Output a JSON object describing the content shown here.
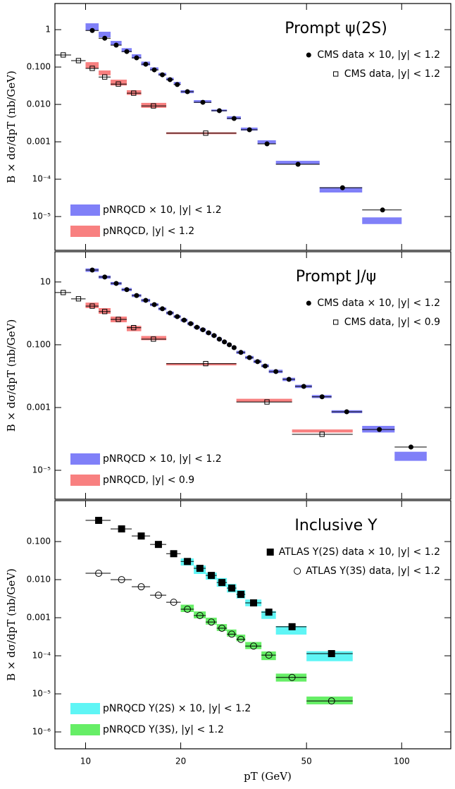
{
  "chart_data": {
    "xlim": [
      8,
      143
    ],
    "xticks": [
      10,
      20,
      50,
      100
    ],
    "xlabel": "pT   (GeV)",
    "log": true,
    "panels": [
      {
        "type": "scatter",
        "title": "Prompt ψ(2S)",
        "ylabel": "B × dσ/dpT   (nb/GeV)",
        "ylim": [
          1.25e-06,
          5
        ],
        "yticks": [
          1,
          {
            "value": 0.1,
            "label": "0.100"
          },
          {
            "value": 0.01,
            "label": "0.010"
          },
          0.001,
          {
            "value": 0.0001,
            "label": "10⁻⁴"
          },
          {
            "value": 1e-05,
            "label": "10⁻⁵"
          }
        ],
        "legend_points": "upper right",
        "legend_bands": "lower left",
        "series": [
          {
            "name": "pNRQCD × 10, |y| < 1.2",
            "kind": "band",
            "color": "#8080f8",
            "bin_low": [
              10,
              11,
              12,
              13,
              14,
              15,
              16,
              17,
              18,
              19,
              20,
              22,
              25,
              28,
              31,
              35,
              40,
              55,
              75
            ],
            "bin_high": [
              11,
              12,
              13,
              14,
              15,
              16,
              17,
              18,
              19,
              20,
              22,
              25,
              28,
              31,
              35,
              40,
              55,
              75,
              100
            ],
            "low": [
              0.96,
              0.62,
              0.385,
              0.25,
              0.17,
              0.11,
              0.081,
              0.059,
              0.044,
              0.034,
              0.02,
              0.011,
              0.0065,
              0.004,
              0.002,
              0.00088,
              0.00025,
              4.4e-05,
              6.3e-06
            ],
            "high": [
              1.48,
              0.88,
              0.5,
              0.32,
              0.22,
              0.14,
              0.098,
              0.07,
              0.052,
              0.04,
              0.024,
              0.013,
              0.0073,
              0.0048,
              0.0024,
              0.0011,
              0.00031,
              6.1e-05,
              9.5e-06
            ]
          },
          {
            "name": "pNRQCD, |y| < 1.2",
            "kind": "band",
            "color": "#f88080",
            "bin_low": [
              10,
              11,
              12,
              13.5,
              15,
              18
            ],
            "bin_high": [
              11,
              12,
              13.5,
              15,
              18,
              30
            ],
            "low": [
              0.092,
              0.06,
              0.032,
              0.018,
              0.0081,
              0.0016
            ],
            "high": [
              0.135,
              0.081,
              0.046,
              0.024,
              0.011,
              0.0018
            ]
          },
          {
            "name": "CMS data × 10, |y| < 1.2",
            "kind": "points",
            "marker": "filled-circle",
            "color": "#000000",
            "x": [
              10.5,
              11.5,
              12.5,
              13.5,
              14.5,
              15.5,
              16.5,
              17.5,
              18.5,
              19.5,
              21,
              23.5,
              26.5,
              29.5,
              33,
              37.5,
              47,
              65,
              87
            ],
            "bin_low": [
              10,
              11,
              12,
              13,
              14,
              15,
              16,
              17,
              18,
              19,
              20,
              22,
              25,
              28,
              31,
              35,
              40,
              55,
              75
            ],
            "bin_high": [
              11,
              12,
              13,
              14,
              15,
              16,
              17,
              18,
              19,
              20,
              22,
              25,
              28,
              31,
              35,
              40,
              55,
              75,
              100
            ],
            "values": [
              0.95,
              0.59,
              0.385,
              0.26,
              0.176,
              0.119,
              0.084,
              0.062,
              0.046,
              0.034,
              0.0219,
              0.0114,
              0.0068,
              0.0042,
              0.0021,
              0.00088,
              0.00025,
              5.9e-05,
              1.5e-05
            ]
          },
          {
            "name": "CMS data, |y| < 1.2",
            "kind": "points",
            "marker": "open-square",
            "color": "#000000",
            "x": [
              8.5,
              9.5,
              10.5,
              11.5,
              12.7,
              14.2,
              16.4,
              24
            ],
            "bin_low": [
              8,
              9,
              10,
              11,
              12,
              13.5,
              15,
              18
            ],
            "bin_high": [
              9,
              10,
              11,
              12,
              13.5,
              15,
              18,
              30
            ],
            "values": [
              0.21,
              0.148,
              0.092,
              0.054,
              0.035,
              0.02,
              0.0091,
              0.0017
            ]
          }
        ]
      },
      {
        "type": "scatter",
        "title": "Prompt J/ψ",
        "ylabel": "B × dσ/dpT   (nb/GeV)",
        "ylim": [
          1.2e-06,
          92
        ],
        "yticks": [
          10,
          {
            "value": 0.1,
            "label": "0.100"
          },
          0.001,
          {
            "value": 1e-05,
            "label": "10⁻⁵"
          }
        ],
        "legend_points": "upper right",
        "legend_bands": "lower left",
        "series": [
          {
            "name": "pNRQCD × 10, |y| < 1.2",
            "kind": "band",
            "color": "#8080f8",
            "bin_low": [
              10,
              11,
              12,
              13,
              14,
              15,
              16,
              17,
              18,
              19,
              20,
              21,
              22,
              23,
              24,
              25,
              26,
              27,
              28,
              29,
              30,
              32,
              34,
              36,
              38,
              42,
              46,
              52,
              60,
              75,
              95
            ],
            "bin_high": [
              11,
              12,
              13,
              14,
              15,
              16,
              17,
              18,
              19,
              20,
              21,
              22,
              23,
              24,
              25,
              26,
              27,
              28,
              29,
              30,
              32,
              34,
              36,
              38,
              42,
              46,
              52,
              60,
              75,
              95,
              120
            ],
            "low": [
              21,
              12.8,
              8.0,
              5.1,
              3.3,
              2.3,
              1.7,
              1.25,
              0.92,
              0.71,
              0.54,
              0.42,
              0.32,
              0.27,
              0.21,
              0.175,
              0.135,
              0.11,
              0.089,
              0.072,
              0.051,
              0.035,
              0.026,
              0.019,
              0.0125,
              0.007,
              0.0042,
              0.002,
              0.00066,
              0.00016,
              2e-05
            ],
            "high": [
              27,
              16,
              10,
              6.4,
              4.1,
              2.9,
              2.1,
              1.55,
              1.15,
              0.88,
              0.68,
              0.53,
              0.4,
              0.34,
              0.27,
              0.22,
              0.17,
              0.138,
              0.112,
              0.091,
              0.064,
              0.044,
              0.033,
              0.024,
              0.016,
              0.0089,
              0.0053,
              0.0025,
              0.00082,
              0.00026,
              3.9e-05
            ]
          },
          {
            "name": "pNRQCD, |y| < 0.9",
            "kind": "band",
            "color": "#f88080",
            "bin_low": [
              10,
              11,
              12,
              13.5,
              15,
              18,
              30,
              45
            ],
            "bin_high": [
              11,
              12,
              13.5,
              15,
              18,
              30,
              45,
              70
            ],
            "low": [
              1.47,
              0.97,
              0.52,
              0.27,
              0.14,
              0.022,
              0.0015,
              0.00016
            ],
            "high": [
              2.2,
              1.47,
              0.79,
              0.4,
              0.19,
              0.026,
              0.0019,
              0.0002
            ]
          },
          {
            "name": "CMS data × 10, |y| < 1.2",
            "kind": "points",
            "marker": "filled-circle",
            "color": "#000000",
            "x": [
              10.5,
              11.5,
              12.5,
              13.5,
              14.5,
              15.5,
              16.5,
              17.5,
              18.5,
              19.5,
              20.5,
              21.5,
              22.5,
              23.5,
              24.5,
              25.5,
              26.5,
              27.5,
              28.5,
              29.5,
              31,
              33,
              35,
              37,
              40,
              44,
              49,
              56,
              67,
              85,
              107
            ],
            "bin_low": [
              10,
              11,
              12,
              13,
              14,
              15,
              16,
              17,
              18,
              19,
              20,
              21,
              22,
              23,
              24,
              25,
              26,
              27,
              28,
              29,
              30,
              32,
              34,
              36,
              38,
              42,
              46,
              52,
              60,
              75,
              95
            ],
            "bin_high": [
              11,
              12,
              13,
              14,
              15,
              16,
              17,
              18,
              19,
              20,
              21,
              22,
              23,
              24,
              25,
              26,
              27,
              28,
              29,
              30,
              32,
              34,
              36,
              38,
              42,
              46,
              52,
              60,
              75,
              95,
              120
            ],
            "values": [
              24,
              14.4,
              9.0,
              5.7,
              3.7,
              2.6,
              1.9,
              1.4,
              1.03,
              0.79,
              0.61,
              0.47,
              0.36,
              0.3,
              0.24,
              0.196,
              0.151,
              0.123,
              0.1,
              0.081,
              0.057,
              0.039,
              0.029,
              0.021,
              0.014,
              0.0079,
              0.0047,
              0.0022,
              0.00073,
              0.0002,
              5.5e-05
            ]
          },
          {
            "name": "CMS data, |y| < 0.9",
            "kind": "points",
            "marker": "open-square",
            "color": "#000000",
            "x": [
              8.5,
              9.5,
              10.5,
              11.5,
              12.7,
              14.2,
              16.4,
              24,
              37.5,
              56
            ],
            "bin_low": [
              8,
              9,
              10,
              11,
              12,
              13.5,
              15,
              18,
              30,
              45
            ],
            "bin_high": [
              9,
              10,
              11,
              12,
              13.5,
              15,
              18,
              30,
              45,
              70
            ],
            "values": [
              4.6,
              2.9,
              1.7,
              1.14,
              0.64,
              0.35,
              0.151,
              0.025,
              0.0015,
              0.00014
            ]
          }
        ]
      },
      {
        "type": "scatter",
        "title": "Inclusive Υ",
        "ylabel": "B × dσ/dpT   (nb/GeV)",
        "ylim": [
          3.6e-07,
          1.19
        ],
        "yticks": [
          {
            "value": 0.1,
            "label": "0.100"
          },
          {
            "value": 0.01,
            "label": "0.010"
          },
          0.001,
          {
            "value": 0.0001,
            "label": "10⁻⁴"
          },
          {
            "value": 1e-05,
            "label": "10⁻⁵"
          },
          {
            "value": 1e-06,
            "label": "10⁻⁶"
          }
        ],
        "legend_points": "upper right",
        "legend_bands": "lower left",
        "series": [
          {
            "name": "pNRQCD Υ(2S) × 10, |y| < 1.2",
            "kind": "band",
            "color": "#5ff5f5",
            "bin_low": [
              20,
              22,
              24,
              26,
              28,
              30,
              32,
              36,
              40,
              50
            ],
            "bin_high": [
              22,
              24,
              26,
              28,
              30,
              32,
              36,
              40,
              50,
              70
            ],
            "low": [
              0.0235,
              0.0141,
              0.01,
              0.0065,
              0.0046,
              0.0032,
              0.002,
              0.00093,
              0.00036,
              7.2e-05
            ],
            "high": [
              0.036,
              0.0235,
              0.0153,
              0.011,
              0.0077,
              0.0053,
              0.003,
              0.0015,
              0.0006,
              0.000132
            ]
          },
          {
            "name": "pNRQCD Υ(3S), |y| < 1.2",
            "kind": "band",
            "color": "#66ee66",
            "bin_low": [
              20,
              22,
              24,
              26,
              28,
              30,
              32,
              36,
              40,
              50
            ],
            "bin_high": [
              22,
              24,
              26,
              28,
              30,
              32,
              36,
              40,
              50,
              70
            ],
            "low": [
              0.00141,
              0.00096,
              0.00066,
              0.00045,
              0.00032,
              0.00024,
              0.00015,
              7.7e-05,
              2.1e-05,
              5.3e-06
            ],
            "high": [
              0.0022,
              0.00146,
              0.001,
              0.00068,
              0.00049,
              0.00036,
              0.00023,
              0.00013,
              3.4e-05,
              8.5e-06
            ]
          },
          {
            "name": "ATLAS Υ(2S) data × 10, |y| < 1.2",
            "kind": "points",
            "marker": "filled-square",
            "color": "#000000",
            "x": [
              11,
              13,
              15,
              17,
              19,
              21,
              23,
              25,
              27,
              29,
              31,
              34,
              38,
              45,
              60
            ],
            "bin_low": [
              10,
              12,
              14,
              16,
              18,
              20,
              22,
              24,
              26,
              28,
              30,
              32,
              36,
              40,
              50
            ],
            "bin_high": [
              12,
              14,
              16,
              18,
              20,
              22,
              24,
              26,
              28,
              30,
              32,
              36,
              40,
              50,
              70
            ],
            "values": [
              0.36,
              0.215,
              0.14,
              0.084,
              0.048,
              0.03,
              0.0198,
              0.0129,
              0.0084,
              0.006,
              0.0041,
              0.00245,
              0.0014,
              0.00058,
              0.000114
            ]
          },
          {
            "name": "ATLAS Υ(3S) data, |y| < 1.2",
            "kind": "points",
            "marker": "open-circle",
            "color": "#000000",
            "x": [
              11,
              13,
              15,
              17,
              19,
              21,
              23,
              25,
              27,
              29,
              31,
              34,
              38,
              45,
              60
            ],
            "bin_low": [
              10,
              12,
              14,
              16,
              18,
              20,
              22,
              24,
              26,
              28,
              30,
              32,
              36,
              40,
              50
            ],
            "bin_high": [
              12,
              14,
              16,
              18,
              20,
              22,
              24,
              26,
              28,
              30,
              32,
              36,
              40,
              50,
              70
            ],
            "values": [
              0.0147,
              0.01,
              0.0065,
              0.0039,
              0.00255,
              0.00167,
              0.00114,
              0.00077,
              0.00053,
              0.00037,
              0.00027,
              0.00018,
              0.000104,
              2.7e-05,
              6.5e-06
            ]
          }
        ]
      }
    ]
  }
}
